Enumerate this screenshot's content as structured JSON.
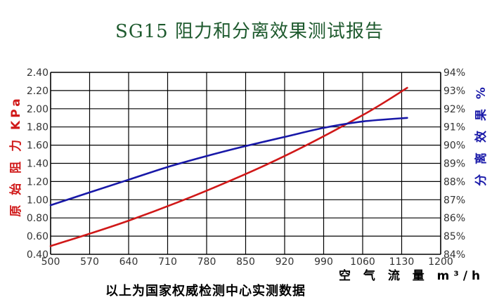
{
  "title": "SG15 阻力和分离效果测试报告",
  "caption": "以上为国家权威检测中心实测数据",
  "colors": {
    "resistance": "#d01818",
    "efficiency": "#1818a8",
    "title": "#1e5a2e",
    "grid": "#000000"
  },
  "chart_data": {
    "type": "line",
    "title": "SG15 阻力和分离效果测试报告",
    "xlabel": "空 气 流 量 m³/h",
    "ylabel_left": "原 始 阻 力 KPa",
    "ylabel_right": "分 离 效 果 %",
    "x_ticks": [
      "500",
      "570",
      "640",
      "710",
      "780",
      "850",
      "920",
      "990",
      "1060",
      "1130",
      "1200"
    ],
    "y_left_ticks": [
      "0.40",
      "0.60",
      "0.80",
      "1.00",
      "1.20",
      "1.40",
      "1.60",
      "1.80",
      "2.00",
      "2.20",
      "2.40"
    ],
    "y_right_ticks": [
      "84%",
      "85%",
      "86%",
      "87%",
      "88%",
      "89%",
      "90%",
      "91%",
      "92%",
      "93%",
      "94%"
    ],
    "xlim": [
      500,
      1200
    ],
    "ylim_left": [
      0.4,
      2.4
    ],
    "ylim_right": [
      84,
      94
    ],
    "grid": true,
    "series": [
      {
        "name": "原始阻力",
        "axis": "left",
        "color": "#d01818",
        "x": [
          500,
          640,
          780,
          920,
          1060,
          1140
        ],
        "y": [
          0.49,
          0.77,
          1.1,
          1.48,
          1.93,
          2.23
        ]
      },
      {
        "name": "分离效果",
        "axis": "right",
        "color": "#1818a8",
        "x": [
          500,
          570,
          640,
          710,
          780,
          850,
          920,
          990,
          1060,
          1140
        ],
        "y": [
          86.7,
          87.4,
          88.1,
          88.8,
          89.4,
          89.95,
          90.45,
          90.95,
          91.3,
          91.5
        ]
      }
    ]
  }
}
